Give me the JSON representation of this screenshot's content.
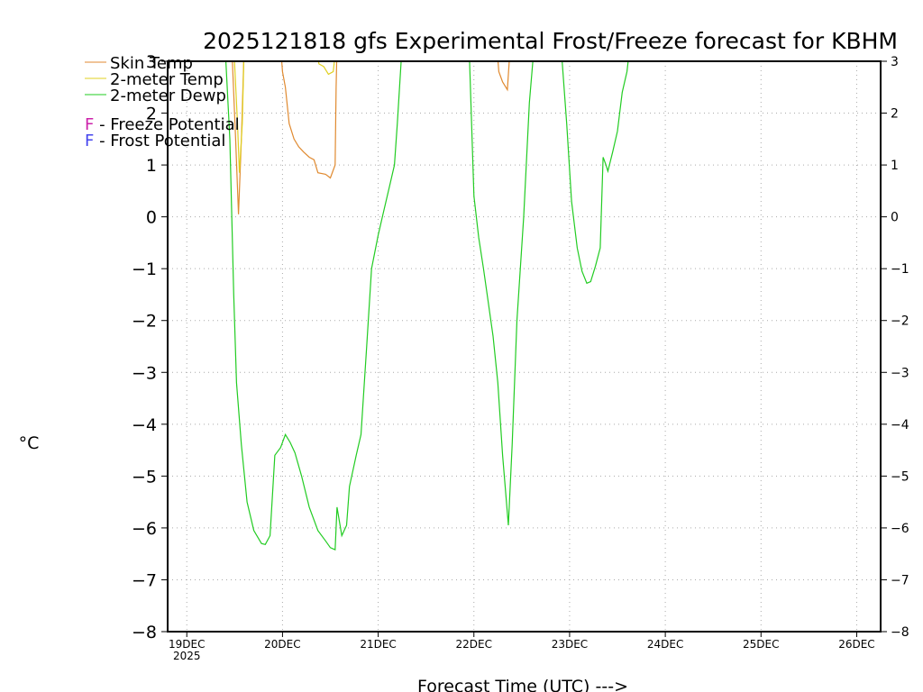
{
  "chart_data": {
    "type": "line",
    "title": "2025121818 gfs Experimental Frost/Freeze forecast for KBHM",
    "xlabel": "Forecast Time (UTC) --->",
    "ylabel": "°C",
    "ylim": [
      -8,
      3
    ],
    "xlim": [
      -0.2,
      7.25
    ],
    "y_ticks": [
      -8,
      -7,
      -6,
      -5,
      -4,
      -3,
      -2,
      -1,
      0,
      1,
      2,
      3
    ],
    "x_ticks": [
      {
        "value": 0,
        "label": "19DEC",
        "sublabel": "2025"
      },
      {
        "value": 1,
        "label": "20DEC"
      },
      {
        "value": 2,
        "label": "21DEC"
      },
      {
        "value": 3,
        "label": "22DEC"
      },
      {
        "value": 4,
        "label": "23DEC"
      },
      {
        "value": 5,
        "label": "24DEC"
      },
      {
        "value": 6,
        "label": "25DEC"
      },
      {
        "value": 7,
        "label": "26DEC"
      }
    ],
    "grid": true,
    "legend": [
      {
        "label": "Skin Temp",
        "color": "#e08a30"
      },
      {
        "label": "2-meter Temp",
        "color": "#e0d020"
      },
      {
        "label": "2-meter Dewp",
        "color": "#22cc22"
      }
    ],
    "potential_legend": [
      {
        "marker": "F",
        "label": " - Freeze Potential",
        "color": "#cc22aa"
      },
      {
        "marker": "F",
        "label": " - Frost Potential",
        "color": "#4444ee"
      }
    ],
    "series": [
      {
        "name": "Skin Temp",
        "color": "#e08a30",
        "segments": [
          [
            [
              0.47,
              3.3
            ],
            [
              0.51,
              1.5
            ],
            [
              0.54,
              0.05
            ],
            [
              0.57,
              1.5
            ],
            [
              0.6,
              3.3
            ]
          ],
          [
            [
              0.98,
              3.3
            ],
            [
              1.0,
              2.8
            ],
            [
              1.03,
              2.5
            ],
            [
              1.07,
              1.8
            ],
            [
              1.12,
              1.5
            ],
            [
              1.17,
              1.35
            ],
            [
              1.22,
              1.25
            ],
            [
              1.28,
              1.15
            ],
            [
              1.33,
              1.1
            ],
            [
              1.37,
              0.85
            ],
            [
              1.45,
              0.82
            ],
            [
              1.5,
              0.75
            ],
            [
              1.55,
              1.0
            ],
            [
              1.56,
              2.5
            ],
            [
              1.57,
              3.3
            ]
          ],
          [
            [
              3.24,
              3.3
            ],
            [
              3.26,
              2.8
            ],
            [
              3.3,
              2.6
            ],
            [
              3.35,
              2.45
            ],
            [
              3.38,
              3.3
            ]
          ]
        ]
      },
      {
        "name": "2-meter Temp",
        "color": "#e0d020",
        "segments": [
          [
            [
              0.49,
              3.3
            ],
            [
              0.53,
              1.8
            ],
            [
              0.55,
              0.85
            ],
            [
              0.58,
              1.8
            ],
            [
              0.6,
              3.3
            ]
          ],
          [
            [
              1.35,
              3.3
            ],
            [
              1.38,
              2.95
            ],
            [
              1.43,
              2.9
            ],
            [
              1.48,
              2.75
            ],
            [
              1.53,
              2.8
            ],
            [
              1.56,
              3.3
            ]
          ]
        ]
      },
      {
        "name": "2-meter Dewp",
        "color": "#22cc22",
        "segments": [
          [
            [
              0.4,
              3.3
            ],
            [
              0.45,
              1.5
            ],
            [
              0.49,
              -1.5
            ],
            [
              0.52,
              -3.2
            ],
            [
              0.57,
              -4.4
            ],
            [
              0.63,
              -5.5
            ],
            [
              0.7,
              -6.05
            ],
            [
              0.78,
              -6.3
            ],
            [
              0.82,
              -6.32
            ],
            [
              0.87,
              -6.15
            ],
            [
              0.92,
              -4.6
            ],
            [
              0.98,
              -4.45
            ],
            [
              1.03,
              -4.2
            ],
            [
              1.08,
              -4.35
            ],
            [
              1.13,
              -4.55
            ],
            [
              1.2,
              -5.0
            ],
            [
              1.28,
              -5.6
            ],
            [
              1.37,
              -6.05
            ],
            [
              1.45,
              -6.25
            ],
            [
              1.5,
              -6.38
            ],
            [
              1.55,
              -6.42
            ],
            [
              1.57,
              -5.6
            ],
            [
              1.62,
              -6.15
            ],
            [
              1.67,
              -5.95
            ],
            [
              1.7,
              -5.2
            ],
            [
              1.77,
              -4.6
            ],
            [
              1.82,
              -4.2
            ],
            [
              1.88,
              -2.5
            ],
            [
              1.93,
              -1.0
            ],
            [
              2.0,
              -0.35
            ],
            [
              2.05,
              0.05
            ],
            [
              2.12,
              0.6
            ],
            [
              2.17,
              1.0
            ],
            [
              2.2,
              1.8
            ],
            [
              2.25,
              3.3
            ]
          ],
          [
            [
              2.95,
              3.3
            ],
            [
              3.0,
              0.4
            ],
            [
              3.05,
              -0.4
            ],
            [
              3.1,
              -1.0
            ],
            [
              3.15,
              -1.65
            ],
            [
              3.2,
              -2.3
            ],
            [
              3.25,
              -3.2
            ],
            [
              3.3,
              -4.6
            ],
            [
              3.36,
              -5.95
            ],
            [
              3.4,
              -4.4
            ],
            [
              3.45,
              -2.0
            ],
            [
              3.52,
              0.0
            ],
            [
              3.58,
              2.2
            ],
            [
              3.63,
              3.3
            ]
          ],
          [
            [
              3.91,
              3.3
            ],
            [
              3.97,
              1.8
            ],
            [
              4.02,
              0.3
            ],
            [
              4.08,
              -0.6
            ],
            [
              4.13,
              -1.05
            ],
            [
              4.18,
              -1.28
            ],
            [
              4.22,
              -1.25
            ],
            [
              4.27,
              -0.95
            ],
            [
              4.32,
              -0.6
            ],
            [
              4.35,
              1.15
            ],
            [
              4.38,
              1.0
            ],
            [
              4.4,
              0.88
            ],
            [
              4.45,
              1.25
            ],
            [
              4.5,
              1.65
            ],
            [
              4.55,
              2.4
            ],
            [
              4.6,
              2.8
            ],
            [
              4.63,
              3.3
            ]
          ]
        ]
      }
    ]
  }
}
